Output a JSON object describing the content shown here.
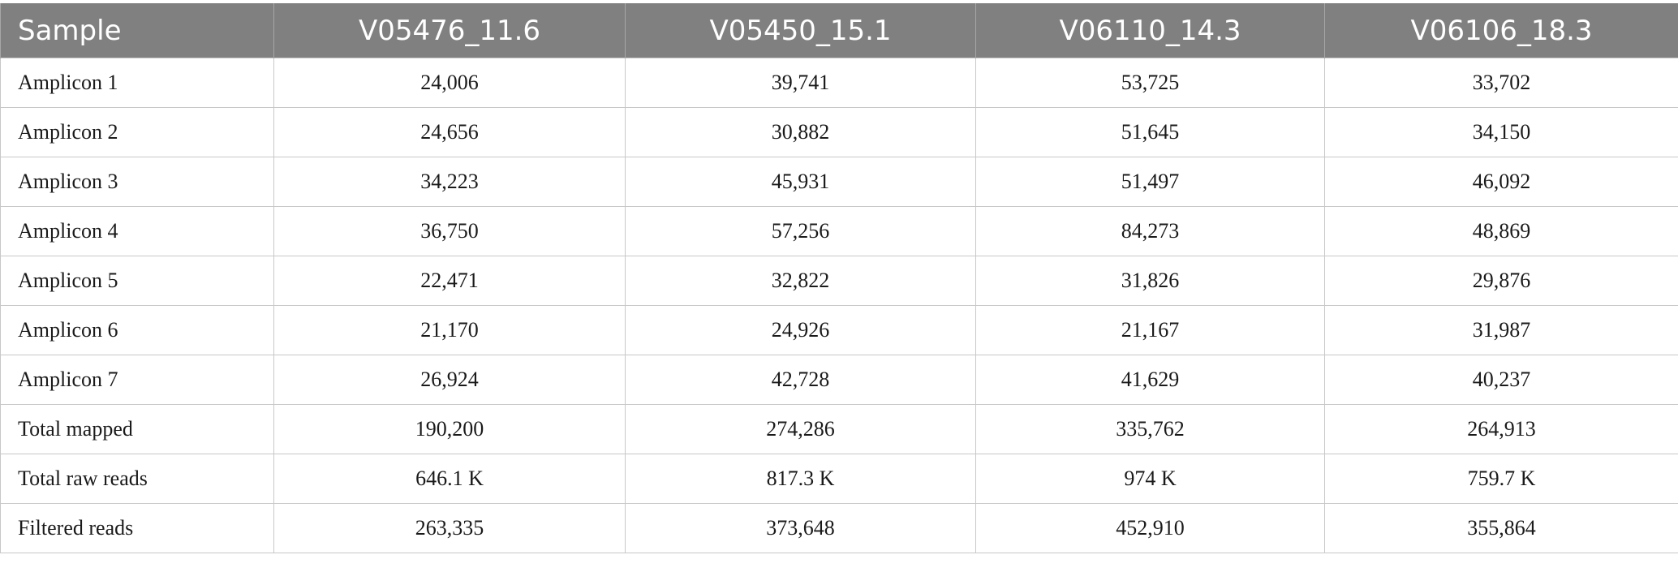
{
  "table": {
    "headers": [
      "Sample",
      "V05476_11.6",
      "V05450_15.1",
      "V06110_14.3",
      "V06106_18.3"
    ],
    "rows": [
      [
        "Amplicon 1",
        "24,006",
        "39,741",
        "53,725",
        "33,702"
      ],
      [
        "Amplicon 2",
        "24,656",
        "30,882",
        "51,645",
        "34,150"
      ],
      [
        "Amplicon 3",
        "34,223",
        "45,931",
        "51,497",
        "46,092"
      ],
      [
        "Amplicon 4",
        "36,750",
        "57,256",
        "84,273",
        "48,869"
      ],
      [
        "Amplicon 5",
        "22,471",
        "32,822",
        "31,826",
        "29,876"
      ],
      [
        "Amplicon 6",
        "21,170",
        "24,926",
        "21,167",
        "31,987"
      ],
      [
        "Amplicon 7",
        "26,924",
        "42,728",
        "41,629",
        "40,237"
      ],
      [
        "Total mapped",
        "190,200",
        "274,286",
        "335,762",
        "264,913"
      ],
      [
        "Total raw reads",
        "646.1 K",
        "817.3 K",
        "974 K",
        "759.7 K"
      ],
      [
        "Filtered reads",
        "263,335",
        "373,648",
        "452,910",
        "355,864"
      ]
    ]
  },
  "colors": {
    "header_bg": "#808080",
    "header_text": "#ffffff",
    "grid_line": "#c8c8c8"
  }
}
